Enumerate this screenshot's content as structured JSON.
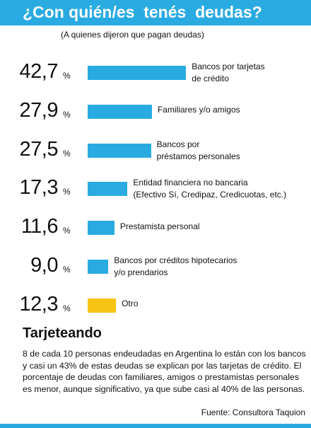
{
  "chart_data": {
    "type": "bar",
    "title": "¿Con quién/es  tenés  deudas?",
    "subtitle": "(A quienes dijeron que pagan deudas)",
    "categories": [
      "Bancos por tarjetas\nde crédito",
      "Familiares y/o amigos",
      "Bancos por\npréstamos personales",
      "Entidad financiera no bancaria\n(Efectivo Sí, Credipaz, Credicuotas, etc.)",
      "Prestamista personal",
      "Bancos por créditos hipotecarios\ny/o prendarios",
      "Otro"
    ],
    "values": [
      42.7,
      27.9,
      27.5,
      17.3,
      11.6,
      9.0,
      12.3
    ],
    "value_labels": [
      "42,7",
      "27,9",
      "27,5",
      "17,3",
      "11,6",
      "9,0",
      "12,3"
    ],
    "unit": "%",
    "colors": [
      "#29abe2",
      "#29abe2",
      "#29abe2",
      "#29abe2",
      "#29abe2",
      "#29abe2",
      "#f7c315"
    ]
  },
  "article": {
    "heading": "Tarjeteando",
    "body": "8 de cada 10 personas endeudadas en Argentina lo están con los bancos y casi un 43% de estas deudas se explican por las tarjetas de crédito. El porcentaje de deudas con familiares, amigos o prestamistas personales es menor, aunque significativo, ya que sube casi al 40% de las personas.",
    "source": "Fuente: Consultora Taquion"
  }
}
